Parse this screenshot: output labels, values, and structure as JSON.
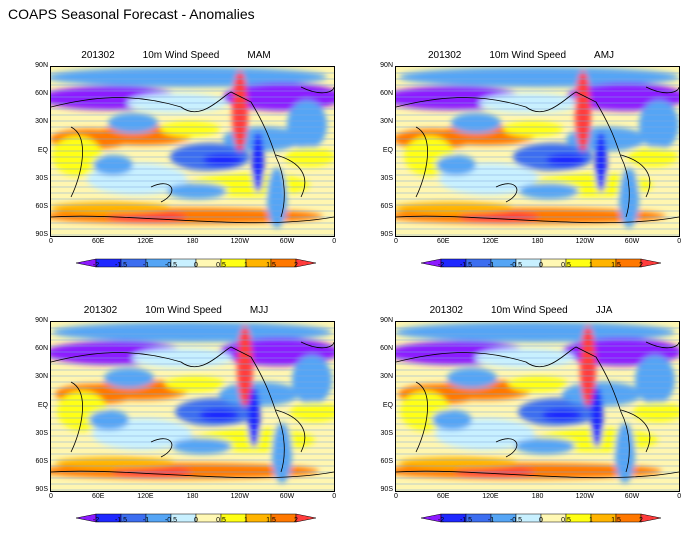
{
  "figure_title": "COAPS Seasonal Forecast - Anomalies",
  "panels": [
    {
      "date": "201302",
      "variable": "10m Wind Speed",
      "season": "MAM"
    },
    {
      "date": "201302",
      "variable": "10m Wind Speed",
      "season": "AMJ"
    },
    {
      "date": "201302",
      "variable": "10m Wind Speed",
      "season": "MJJ"
    },
    {
      "date": "201302",
      "variable": "10m Wind Speed",
      "season": "JJA"
    }
  ],
  "y_ticks": [
    "90N",
    "60N",
    "30N",
    "EQ",
    "30S",
    "60S",
    "90S"
  ],
  "x_ticks": [
    "0",
    "60E",
    "120E",
    "180",
    "120W",
    "60W",
    "0"
  ],
  "colorbar": {
    "labels": [
      "-2",
      "-1.5",
      "-1",
      "-0.5",
      "0",
      "0.5",
      "1",
      "1.5",
      "2"
    ],
    "colors": [
      "#8c1aff",
      "#1e28ff",
      "#3c6ef0",
      "#55a5f5",
      "#c8f0ff",
      "#fff8b4",
      "#ffff14",
      "#ffb400",
      "#ff7800",
      "#ff3c3c"
    ]
  }
}
